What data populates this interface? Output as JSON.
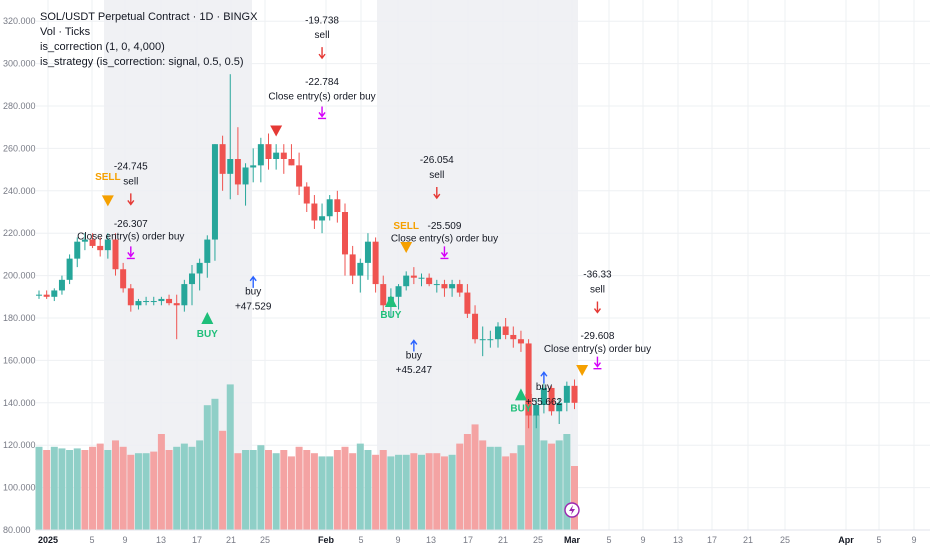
{
  "legend": {
    "title": "SOL/USDT Perpetual Contract · 1D · BINGX",
    "line2": "Vol · Ticks",
    "line3": "is_correction (1, 0, 4,000)",
    "line4": "is_strategy (is_correction: signal, 0.5, 0.5)"
  },
  "colors": {
    "up": "#26a69a",
    "down": "#ef5350",
    "vol_up": "#8fcfc7",
    "vol_down": "#f4a3a3",
    "session": "#f0f1f4",
    "grid": "#eef0f3",
    "buy_marker": "#1fbf7a",
    "sell_marker": "#f5a000",
    "entry_arrow": "#2962ff",
    "exit_arrow": "#d500f9",
    "short_arrow": "#e53935"
  },
  "chart_data": {
    "type": "candlestick",
    "y_axis": {
      "range": [
        80,
        330
      ],
      "ticks": [
        "320.000",
        "300.000",
        "280.000",
        "260.000",
        "240.000",
        "220.000",
        "200.000",
        "180.000",
        "160.000",
        "140.000",
        "120.000",
        "100.000",
        "80.000"
      ]
    },
    "x_axis": {
      "ticks": [
        "2025",
        "5",
        "9",
        "13",
        "17",
        "21",
        "25",
        "Feb",
        "5",
        "9",
        "13",
        "17",
        "21",
        "25",
        "Mar",
        "5",
        "9",
        "13",
        "17",
        "21",
        "25",
        "Apr",
        "5",
        "9"
      ]
    },
    "candles": [
      {
        "o": 191,
        "h": 193,
        "l": 189,
        "c": 191
      },
      {
        "o": 191,
        "h": 193,
        "l": 189,
        "c": 190
      },
      {
        "o": 190,
        "h": 194,
        "l": 188,
        "c": 193
      },
      {
        "o": 193,
        "h": 200,
        "l": 191,
        "c": 198
      },
      {
        "o": 198,
        "h": 210,
        "l": 196,
        "c": 208
      },
      {
        "o": 208,
        "h": 218,
        "l": 204,
        "c": 216
      },
      {
        "o": 216,
        "h": 220,
        "l": 212,
        "c": 217
      },
      {
        "o": 217,
        "h": 220,
        "l": 213,
        "c": 214
      },
      {
        "o": 214,
        "h": 218,
        "l": 209,
        "c": 212
      },
      {
        "o": 212,
        "h": 220,
        "l": 208,
        "c": 217
      },
      {
        "o": 217,
        "h": 220,
        "l": 200,
        "c": 203
      },
      {
        "o": 203,
        "h": 206,
        "l": 192,
        "c": 194
      },
      {
        "o": 194,
        "h": 196,
        "l": 183,
        "c": 186
      },
      {
        "o": 186,
        "h": 189,
        "l": 184,
        "c": 188
      },
      {
        "o": 188,
        "h": 190,
        "l": 186,
        "c": 188
      },
      {
        "o": 188,
        "h": 190,
        "l": 186,
        "c": 188
      },
      {
        "o": 188,
        "h": 190,
        "l": 186,
        "c": 189
      },
      {
        "o": 189,
        "h": 191,
        "l": 186,
        "c": 187
      },
      {
        "o": 187,
        "h": 191,
        "l": 170,
        "c": 186
      },
      {
        "o": 186,
        "h": 198,
        "l": 183,
        "c": 196
      },
      {
        "o": 196,
        "h": 205,
        "l": 186,
        "c": 201
      },
      {
        "o": 201,
        "h": 208,
        "l": 193,
        "c": 206
      },
      {
        "o": 206,
        "h": 219,
        "l": 199,
        "c": 217
      },
      {
        "o": 217,
        "h": 262,
        "l": 207,
        "c": 262
      },
      {
        "o": 262,
        "h": 266,
        "l": 240,
        "c": 248
      },
      {
        "o": 248,
        "h": 295,
        "l": 236,
        "c": 255
      },
      {
        "o": 255,
        "h": 270,
        "l": 238,
        "c": 243
      },
      {
        "o": 243,
        "h": 253,
        "l": 233,
        "c": 251
      },
      {
        "o": 251,
        "h": 260,
        "l": 244,
        "c": 252
      },
      {
        "o": 252,
        "h": 265,
        "l": 244,
        "c": 262
      },
      {
        "o": 262,
        "h": 267,
        "l": 250,
        "c": 255
      },
      {
        "o": 255,
        "h": 262,
        "l": 250,
        "c": 258
      },
      {
        "o": 258,
        "h": 262,
        "l": 248,
        "c": 255
      },
      {
        "o": 255,
        "h": 262,
        "l": 252,
        "c": 252
      },
      {
        "o": 252,
        "h": 258,
        "l": 238,
        "c": 242
      },
      {
        "o": 242,
        "h": 244,
        "l": 230,
        "c": 234
      },
      {
        "o": 234,
        "h": 238,
        "l": 222,
        "c": 226
      },
      {
        "o": 226,
        "h": 234,
        "l": 220,
        "c": 228
      },
      {
        "o": 228,
        "h": 238,
        "l": 226,
        "c": 236
      },
      {
        "o": 236,
        "h": 240,
        "l": 225,
        "c": 230
      },
      {
        "o": 230,
        "h": 234,
        "l": 200,
        "c": 210
      },
      {
        "o": 210,
        "h": 214,
        "l": 196,
        "c": 200
      },
      {
        "o": 200,
        "h": 208,
        "l": 192,
        "c": 206
      },
      {
        "o": 206,
        "h": 220,
        "l": 198,
        "c": 216
      },
      {
        "o": 216,
        "h": 218,
        "l": 192,
        "c": 196
      },
      {
        "o": 196,
        "h": 200,
        "l": 183,
        "c": 186
      },
      {
        "o": 186,
        "h": 194,
        "l": 180,
        "c": 190
      },
      {
        "o": 190,
        "h": 196,
        "l": 184,
        "c": 195
      },
      {
        "o": 195,
        "h": 202,
        "l": 193,
        "c": 200
      },
      {
        "o": 200,
        "h": 204,
        "l": 196,
        "c": 199
      },
      {
        "o": 199,
        "h": 201,
        "l": 195,
        "c": 199
      },
      {
        "o": 199,
        "h": 201,
        "l": 195,
        "c": 196
      },
      {
        "o": 196,
        "h": 198,
        "l": 192,
        "c": 196
      },
      {
        "o": 196,
        "h": 198,
        "l": 190,
        "c": 194
      },
      {
        "o": 194,
        "h": 198,
        "l": 190,
        "c": 196
      },
      {
        "o": 196,
        "h": 198,
        "l": 190,
        "c": 192
      },
      {
        "o": 192,
        "h": 196,
        "l": 180,
        "c": 182
      },
      {
        "o": 182,
        "h": 186,
        "l": 168,
        "c": 170
      },
      {
        "o": 170,
        "h": 176,
        "l": 162,
        "c": 170
      },
      {
        "o": 170,
        "h": 174,
        "l": 166,
        "c": 170
      },
      {
        "o": 170,
        "h": 178,
        "l": 166,
        "c": 176
      },
      {
        "o": 176,
        "h": 180,
        "l": 170,
        "c": 172
      },
      {
        "o": 172,
        "h": 176,
        "l": 166,
        "c": 170
      },
      {
        "o": 170,
        "h": 174,
        "l": 164,
        "c": 168
      },
      {
        "o": 168,
        "h": 170,
        "l": 128,
        "c": 134
      },
      {
        "o": 134,
        "h": 142,
        "l": 128,
        "c": 139
      },
      {
        "o": 139,
        "h": 150,
        "l": 135,
        "c": 147
      },
      {
        "o": 147,
        "h": 148,
        "l": 134,
        "c": 136
      },
      {
        "o": 136,
        "h": 142,
        "l": 130,
        "c": 140
      },
      {
        "o": 140,
        "h": 150,
        "l": 136,
        "c": 148
      },
      {
        "o": 148,
        "h": 151,
        "l": 137,
        "c": 140
      }
    ],
    "volume": [
      {
        "v": 0.52,
        "up": true
      },
      {
        "v": 0.5,
        "up": false
      },
      {
        "v": 0.52,
        "up": true
      },
      {
        "v": 0.51,
        "up": true
      },
      {
        "v": 0.5,
        "up": true
      },
      {
        "v": 0.51,
        "up": true
      },
      {
        "v": 0.5,
        "up": false
      },
      {
        "v": 0.52,
        "up": false
      },
      {
        "v": 0.54,
        "up": false
      },
      {
        "v": 0.5,
        "up": true
      },
      {
        "v": 0.56,
        "up": false
      },
      {
        "v": 0.52,
        "up": false
      },
      {
        "v": 0.47,
        "up": false
      },
      {
        "v": 0.48,
        "up": true
      },
      {
        "v": 0.48,
        "up": true
      },
      {
        "v": 0.49,
        "up": false
      },
      {
        "v": 0.6,
        "up": false
      },
      {
        "v": 0.5,
        "up": false
      },
      {
        "v": 0.52,
        "up": true
      },
      {
        "v": 0.54,
        "up": true
      },
      {
        "v": 0.52,
        "up": true
      },
      {
        "v": 0.56,
        "up": true
      },
      {
        "v": 0.78,
        "up": true
      },
      {
        "v": 0.82,
        "up": true
      },
      {
        "v": 0.62,
        "up": false
      },
      {
        "v": 0.91,
        "up": true
      },
      {
        "v": 0.48,
        "up": false
      },
      {
        "v": 0.5,
        "up": true
      },
      {
        "v": 0.5,
        "up": true
      },
      {
        "v": 0.53,
        "up": true
      },
      {
        "v": 0.5,
        "up": false
      },
      {
        "v": 0.48,
        "up": true
      },
      {
        "v": 0.5,
        "up": false
      },
      {
        "v": 0.46,
        "up": false
      },
      {
        "v": 0.52,
        "up": false
      },
      {
        "v": 0.5,
        "up": false
      },
      {
        "v": 0.48,
        "up": false
      },
      {
        "v": 0.46,
        "up": true
      },
      {
        "v": 0.46,
        "up": true
      },
      {
        "v": 0.5,
        "up": false
      },
      {
        "v": 0.52,
        "up": false
      },
      {
        "v": 0.48,
        "up": false
      },
      {
        "v": 0.54,
        "up": true
      },
      {
        "v": 0.5,
        "up": true
      },
      {
        "v": 0.47,
        "up": false
      },
      {
        "v": 0.5,
        "up": false
      },
      {
        "v": 0.46,
        "up": true
      },
      {
        "v": 0.47,
        "up": true
      },
      {
        "v": 0.47,
        "up": true
      },
      {
        "v": 0.48,
        "up": false
      },
      {
        "v": 0.47,
        "up": true
      },
      {
        "v": 0.48,
        "up": false
      },
      {
        "v": 0.48,
        "up": false
      },
      {
        "v": 0.46,
        "up": false
      },
      {
        "v": 0.47,
        "up": true
      },
      {
        "v": 0.54,
        "up": false
      },
      {
        "v": 0.6,
        "up": false
      },
      {
        "v": 0.66,
        "up": false
      },
      {
        "v": 0.56,
        "up": false
      },
      {
        "v": 0.52,
        "up": true
      },
      {
        "v": 0.52,
        "up": true
      },
      {
        "v": 0.46,
        "up": false
      },
      {
        "v": 0.48,
        "up": false
      },
      {
        "v": 0.53,
        "up": true
      },
      {
        "v": 0.85,
        "up": false
      },
      {
        "v": 0.72,
        "up": true
      },
      {
        "v": 0.56,
        "up": true
      },
      {
        "v": 0.54,
        "up": false
      },
      {
        "v": 0.56,
        "up": true
      },
      {
        "v": 0.6,
        "up": true
      },
      {
        "v": 0.4,
        "up": false
      }
    ],
    "annotations": [
      {
        "text": "-24.745",
        "i": 12,
        "p": 250
      },
      {
        "text": "sell",
        "i": 12,
        "p": 243
      },
      {
        "text": "-26.307",
        "i": 12,
        "p": 223
      },
      {
        "text": "Close entry(s) order buy",
        "i": 12,
        "p": 217
      },
      {
        "text": "SELL",
        "i": 9,
        "p": 245,
        "tone": "sell"
      },
      {
        "text": "buy",
        "i": 28,
        "p": 191
      },
      {
        "text": "+47.529",
        "i": 28,
        "p": 184
      },
      {
        "text": "BUY",
        "i": 22,
        "p": 171,
        "tone": "buy"
      },
      {
        "text": "-19.738",
        "i": 37,
        "p": 319
      },
      {
        "text": "sell",
        "i": 37,
        "p": 312
      },
      {
        "text": "-22.784",
        "i": 37,
        "p": 290
      },
      {
        "text": "Close entry(s) order buy",
        "i": 37,
        "p": 283
      },
      {
        "text": "-26.054",
        "i": 52,
        "p": 253
      },
      {
        "text": "sell",
        "i": 52,
        "p": 246
      },
      {
        "text": "SELL",
        "i": 48,
        "p": 222,
        "tone": "sell"
      },
      {
        "text": "-25.509",
        "i": 53,
        "p": 222
      },
      {
        "text": "Close entry(s) order buy",
        "i": 53,
        "p": 216
      },
      {
        "text": "BUY",
        "i": 46,
        "p": 180,
        "tone": "buy"
      },
      {
        "text": "buy",
        "i": 49,
        "p": 161
      },
      {
        "text": "+45.247",
        "i": 49,
        "p": 154
      },
      {
        "text": "buy",
        "i": 66,
        "p": 146
      },
      {
        "text": "+55.662",
        "i": 66,
        "p": 139
      },
      {
        "text": "BUY",
        "i": 63,
        "p": 136,
        "tone": "buy"
      },
      {
        "text": "-36.33",
        "i": 73,
        "p": 199
      },
      {
        "text": "sell",
        "i": 73,
        "p": 192
      },
      {
        "text": "-29.608",
        "i": 73,
        "p": 170
      },
      {
        "text": "Close entry(s) order buy",
        "i": 73,
        "p": 164
      }
    ],
    "markers": [
      {
        "kind": "sell-triangle",
        "i": 9,
        "p": 235
      },
      {
        "kind": "buy-triangle",
        "i": 22,
        "p": 180
      },
      {
        "kind": "sell-triangle",
        "i": 31,
        "p": 268
      },
      {
        "kind": "buy-triangle",
        "i": 46,
        "p": 188
      },
      {
        "kind": "sell-triangle",
        "i": 48,
        "p": 213
      },
      {
        "kind": "buy-triangle",
        "i": 63,
        "p": 144
      },
      {
        "kind": "sell-triangle",
        "i": 71,
        "p": 155
      },
      {
        "kind": "short-arrow",
        "i": 12,
        "p": 235
      },
      {
        "kind": "short-arrow",
        "i": 37,
        "p": 304
      },
      {
        "kind": "short-arrow",
        "i": 52,
        "p": 238
      },
      {
        "kind": "short-arrow",
        "i": 73,
        "p": 184
      },
      {
        "kind": "close-arrow",
        "i": 12,
        "p": 210
      },
      {
        "kind": "close-arrow",
        "i": 37,
        "p": 276
      },
      {
        "kind": "close-arrow",
        "i": 53,
        "p": 210
      },
      {
        "kind": "close-arrow",
        "i": 73,
        "p": 158
      },
      {
        "kind": "long-arrow",
        "i": 28,
        "p": 198
      },
      {
        "kind": "long-arrow",
        "i": 49,
        "p": 168
      },
      {
        "kind": "long-arrow",
        "i": 66,
        "p": 153
      }
    ]
  }
}
